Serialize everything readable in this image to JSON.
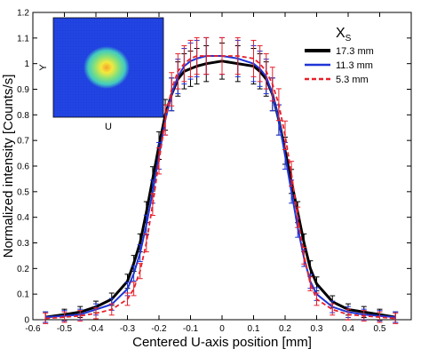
{
  "chart_data": {
    "type": "line",
    "title": "",
    "xlabel": "Centered U-axis position [mm]",
    "ylabel": "Normalized intensity [Counts/s]",
    "xlim": [
      -0.6,
      0.6
    ],
    "ylim": [
      0,
      1.2
    ],
    "x_ticks": [
      -0.6,
      -0.5,
      -0.4,
      -0.3,
      -0.2,
      -0.1,
      0,
      0.1,
      0.2,
      0.3,
      0.4,
      0.5
    ],
    "x_tick_labels": [
      "-0.6",
      "-0.5",
      "-0.4",
      "-0.3",
      "-0.2",
      "-0.1",
      "0",
      "0.1",
      "0.2",
      "0.3",
      "0.4",
      "0.5"
    ],
    "y_ticks": [
      0,
      0.1,
      0.2,
      0.3,
      0.4,
      0.5,
      0.6,
      0.7,
      0.8,
      0.9,
      1,
      1.1,
      1.2
    ],
    "y_tick_labels": [
      "0",
      "0.1",
      "0.2",
      "0.3",
      "0.4",
      "0.5",
      "0.6",
      "0.7",
      "0.8",
      "0.9",
      "1",
      "1.1",
      "1.2"
    ],
    "grid": false,
    "legend": {
      "title": "X",
      "title_sub": "S",
      "placement": "top-right",
      "entries": [
        "17.3 mm",
        "11.3 mm",
        "5.3 mm"
      ]
    },
    "series": [
      {
        "name": "17.3 mm",
        "color": "#000000",
        "style": "solid-thick",
        "x": [
          -0.56,
          -0.5,
          -0.45,
          -0.4,
          -0.35,
          -0.3,
          -0.28,
          -0.26,
          -0.24,
          -0.22,
          -0.2,
          -0.18,
          -0.16,
          -0.14,
          -0.12,
          -0.1,
          -0.08,
          -0.05,
          0,
          0.05,
          0.1,
          0.12,
          0.14,
          0.16,
          0.18,
          0.2,
          0.22,
          0.24,
          0.26,
          0.28,
          0.3,
          0.35,
          0.4,
          0.45,
          0.5,
          0.55
        ],
        "y": [
          0.01,
          0.02,
          0.03,
          0.05,
          0.08,
          0.15,
          0.22,
          0.3,
          0.42,
          0.55,
          0.68,
          0.8,
          0.88,
          0.94,
          0.97,
          0.98,
          0.99,
          1.0,
          1.01,
          1.0,
          0.99,
          0.97,
          0.94,
          0.88,
          0.78,
          0.66,
          0.54,
          0.42,
          0.3,
          0.2,
          0.14,
          0.07,
          0.04,
          0.03,
          0.02,
          0.01
        ]
      },
      {
        "name": "11.3 mm",
        "color": "#1f35d6",
        "style": "solid",
        "x": [
          -0.56,
          -0.5,
          -0.45,
          -0.4,
          -0.35,
          -0.3,
          -0.28,
          -0.26,
          -0.24,
          -0.22,
          -0.2,
          -0.18,
          -0.16,
          -0.14,
          -0.12,
          -0.1,
          -0.08,
          -0.05,
          0,
          0.05,
          0.1,
          0.12,
          0.14,
          0.16,
          0.18,
          0.2,
          0.22,
          0.24,
          0.26,
          0.28,
          0.3,
          0.35,
          0.4,
          0.45,
          0.5,
          0.55
        ],
        "y": [
          0.01,
          0.015,
          0.02,
          0.04,
          0.06,
          0.12,
          0.18,
          0.26,
          0.37,
          0.5,
          0.64,
          0.78,
          0.88,
          0.95,
          0.99,
          1.01,
          1.02,
          1.03,
          1.03,
          1.02,
          1.0,
          0.98,
          0.95,
          0.88,
          0.78,
          0.64,
          0.5,
          0.36,
          0.24,
          0.15,
          0.1,
          0.05,
          0.03,
          0.02,
          0.015,
          0.01
        ]
      },
      {
        "name": "5.3 mm",
        "color": "#e8202a",
        "style": "dashed",
        "x": [
          -0.56,
          -0.5,
          -0.45,
          -0.4,
          -0.35,
          -0.3,
          -0.28,
          -0.26,
          -0.24,
          -0.22,
          -0.2,
          -0.18,
          -0.16,
          -0.14,
          -0.12,
          -0.1,
          -0.08,
          -0.05,
          0,
          0.05,
          0.1,
          0.12,
          0.14,
          0.16,
          0.18,
          0.2,
          0.22,
          0.24,
          0.26,
          0.28,
          0.3,
          0.35,
          0.4,
          0.45,
          0.5,
          0.55
        ],
        "y": [
          0.005,
          0.01,
          0.015,
          0.025,
          0.04,
          0.08,
          0.12,
          0.19,
          0.3,
          0.45,
          0.62,
          0.78,
          0.9,
          0.97,
          1.0,
          1.02,
          1.03,
          1.03,
          1.03,
          1.03,
          1.02,
          1.0,
          0.97,
          0.92,
          0.84,
          0.72,
          0.57,
          0.4,
          0.25,
          0.14,
          0.08,
          0.04,
          0.02,
          0.015,
          0.01,
          0.005
        ]
      }
    ],
    "inset": {
      "type": "heatmap",
      "xlabel": "U",
      "ylabel": "Y",
      "colors": {
        "background": "#1c3fe0",
        "ring": "#3ec8c0",
        "mid": "#7de07a",
        "core": "#f3e838",
        "peak": "#f5a12a"
      }
    }
  }
}
